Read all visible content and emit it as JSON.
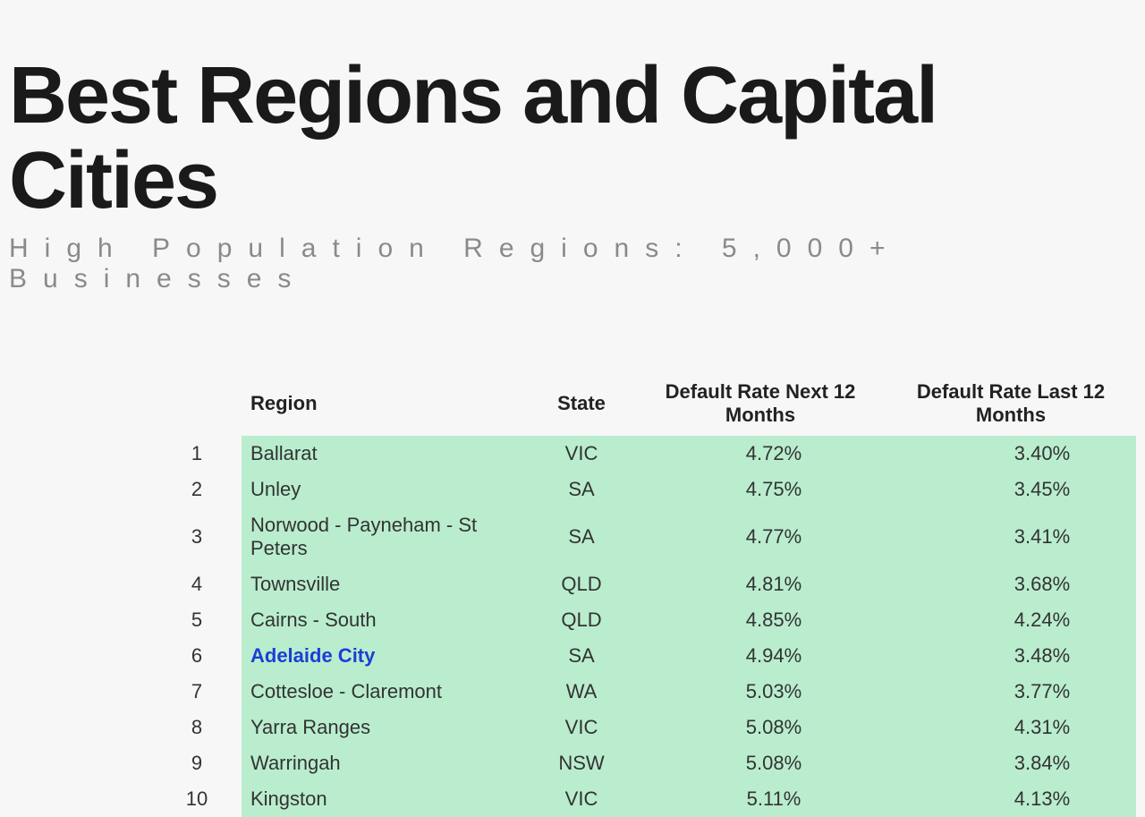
{
  "header": {
    "title": "Best Regions and Capital Cities",
    "subtitle": "High Population Regions: 5,000+ Businesses"
  },
  "table": {
    "columns": {
      "rank": "",
      "region": "Region",
      "state": "State",
      "next": "Default Rate Next 12 Months",
      "last": "Default Rate Last 12 Months"
    },
    "row_bg_color": "#b9edce",
    "highlight_color": "#1a3fd6",
    "rows": [
      {
        "rank": "1",
        "region": "Ballarat",
        "state": "VIC",
        "next": "4.72%",
        "last": "3.40%",
        "highlight": false
      },
      {
        "rank": "2",
        "region": "Unley",
        "state": "SA",
        "next": "4.75%",
        "last": "3.45%",
        "highlight": false
      },
      {
        "rank": "3",
        "region": "Norwood - Payneham - St Peters",
        "state": "SA",
        "next": "4.77%",
        "last": "3.41%",
        "highlight": false
      },
      {
        "rank": "4",
        "region": "Townsville",
        "state": "QLD",
        "next": "4.81%",
        "last": "3.68%",
        "highlight": false
      },
      {
        "rank": "5",
        "region": "Cairns - South",
        "state": "QLD",
        "next": "4.85%",
        "last": "4.24%",
        "highlight": false
      },
      {
        "rank": "6",
        "region": "Adelaide City",
        "state": "SA",
        "next": "4.94%",
        "last": "3.48%",
        "highlight": true
      },
      {
        "rank": "7",
        "region": "Cottesloe - Claremont",
        "state": "WA",
        "next": "5.03%",
        "last": "3.77%",
        "highlight": false
      },
      {
        "rank": "8",
        "region": "Yarra Ranges",
        "state": "VIC",
        "next": "5.08%",
        "last": "4.31%",
        "highlight": false
      },
      {
        "rank": "9",
        "region": "Warringah",
        "state": "NSW",
        "next": "5.08%",
        "last": "3.84%",
        "highlight": false
      },
      {
        "rank": "10",
        "region": "Kingston",
        "state": "VIC",
        "next": "5.11%",
        "last": "4.13%",
        "highlight": false
      }
    ]
  }
}
